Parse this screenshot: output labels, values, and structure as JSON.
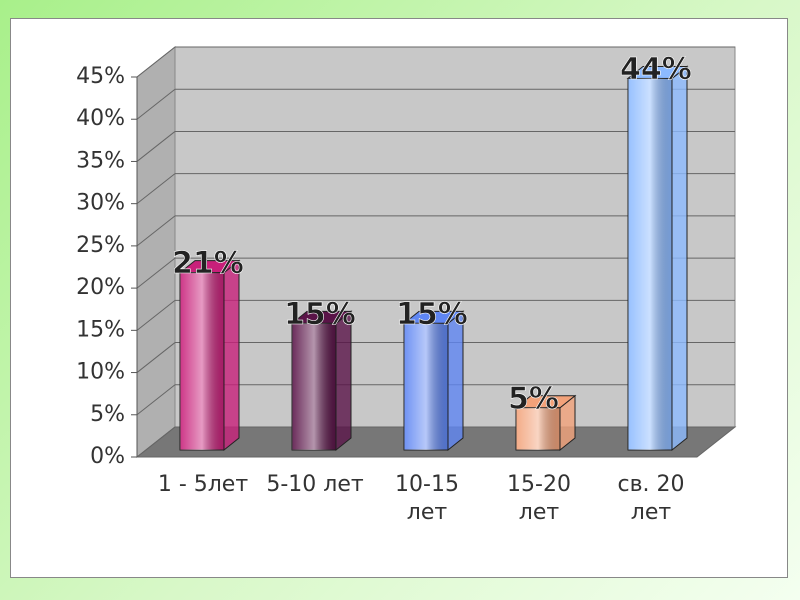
{
  "chart_data": {
    "type": "bar",
    "categories": [
      "1 - 5лет",
      "5-10 лет",
      "10-15 лет",
      "15-20 лет",
      "св. 20 лет"
    ],
    "values": [
      21,
      15,
      15,
      5,
      44
    ],
    "value_labels": [
      "21%",
      "15%",
      "15%",
      "5%",
      "44%"
    ],
    "colors": [
      "#c8207a",
      "#5a1448",
      "#5f86f2",
      "#f2a27a",
      "#8cbaff"
    ],
    "ylim": [
      0,
      45
    ],
    "yticks": [
      {
        "value": 0,
        "label": "0%"
      },
      {
        "value": 5,
        "label": "5%"
      },
      {
        "value": 10,
        "label": "10%"
      },
      {
        "value": 15,
        "label": "15%"
      },
      {
        "value": 20,
        "label": "20%"
      },
      {
        "value": 25,
        "label": "25%"
      },
      {
        "value": 30,
        "label": "30%"
      },
      {
        "value": 35,
        "label": "35%"
      },
      {
        "value": 40,
        "label": "40%"
      },
      {
        "value": 45,
        "label": "45%"
      }
    ],
    "grid": true
  }
}
